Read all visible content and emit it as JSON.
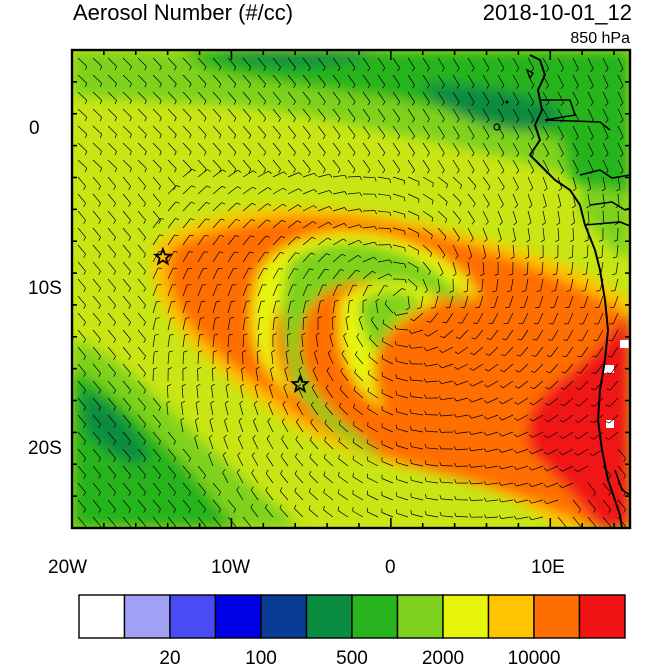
{
  "header": {
    "title": "Aerosol Number (#/cc)",
    "datetime": "2018-10-01_12",
    "level": "850 hPa"
  },
  "axes": {
    "x_ticks": [
      {
        "label": "20W",
        "lon": -20
      },
      {
        "label": "10W",
        "lon": -10
      },
      {
        "label": "0",
        "lon": 0
      },
      {
        "label": "10E",
        "lon": 10
      }
    ],
    "y_ticks": [
      {
        "label": "0",
        "lat": 0
      },
      {
        "label": "10S",
        "lat": -10
      },
      {
        "label": "20S",
        "lat": -20
      }
    ],
    "lon_range": [
      -20,
      15
    ],
    "lat_range": [
      -25,
      5
    ]
  },
  "colorbar": {
    "colors": [
      "#ffffff",
      "#a0a0f5",
      "#4b4bf5",
      "#0000e6",
      "#0a3c96",
      "#0a8c41",
      "#28b41e",
      "#7ed21e",
      "#e6f50a",
      "#ffc300",
      "#ff6e00",
      "#f01414"
    ],
    "labels": [
      {
        "text": "20",
        "after_box": 2
      },
      {
        "text": "100",
        "after_box": 4
      },
      {
        "text": "500",
        "after_box": 6
      },
      {
        "text": "2000",
        "after_box": 8
      },
      {
        "text": "10000",
        "after_box": 10
      }
    ]
  },
  "markers": [
    {
      "name": "star-west",
      "lon": -14.3,
      "lat": -8.0
    },
    {
      "name": "star-center",
      "lon": -5.7,
      "lat": -16.0
    }
  ]
}
